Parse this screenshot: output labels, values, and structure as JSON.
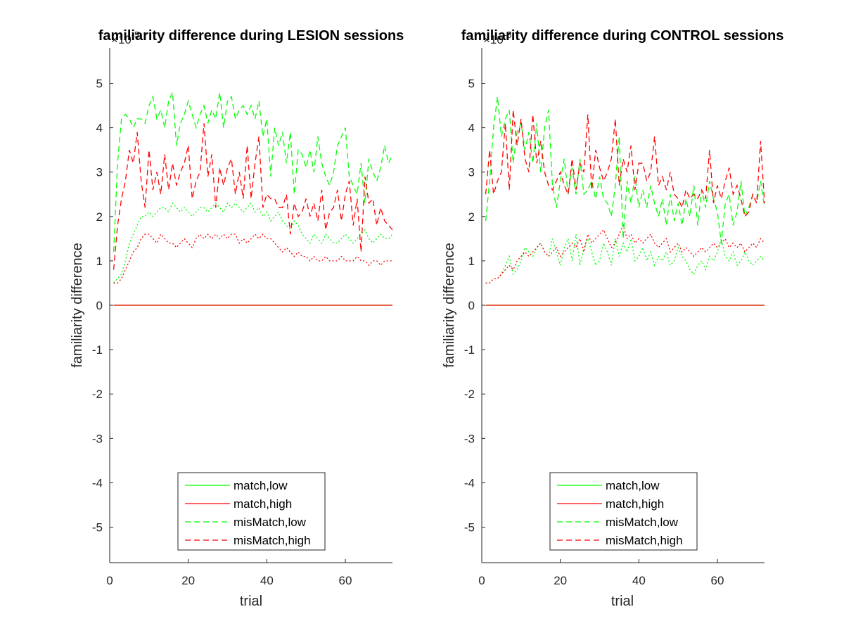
{
  "chart_data": [
    {
      "type": "line",
      "title": "familiarity difference during LESION sessions",
      "xlabel": "trial",
      "ylabel": "familiarity difference",
      "y_exponent_label": "×10",
      "y_exponent_power": "-5",
      "xlim": [
        0,
        72
      ],
      "ylim": [
        -5.8,
        5.8
      ],
      "xticks": [
        "0",
        "20",
        "40",
        "60"
      ],
      "yticks": [
        "-5",
        "-4",
        "-3",
        "-2",
        "-1",
        "0",
        "1",
        "2",
        "3",
        "4",
        "5"
      ],
      "grid": false,
      "legend_position": "bottom-center",
      "x_start": 1,
      "series": [
        {
          "name": "match,low",
          "color": "#00ff00",
          "style": "solid",
          "values": [
            0,
            0,
            0,
            0,
            0,
            0,
            0,
            0,
            0,
            0,
            0,
            0,
            0,
            0,
            0,
            0,
            0,
            0,
            0,
            0,
            0,
            0,
            0,
            0,
            0,
            0,
            0,
            0,
            0,
            0,
            0,
            0,
            0,
            0,
            0,
            0,
            0,
            0,
            0,
            0,
            0,
            0,
            0,
            0,
            0,
            0,
            0,
            0,
            0,
            0,
            0,
            0,
            0,
            0,
            0,
            0,
            0,
            0,
            0,
            0,
            0,
            0,
            0,
            0,
            0,
            0,
            0,
            0,
            0,
            0,
            0,
            0
          ]
        },
        {
          "name": "match,high",
          "color": "#ff0000",
          "style": "solid",
          "values": [
            0,
            0,
            0,
            0,
            0,
            0,
            0,
            0,
            0,
            0,
            0,
            0,
            0,
            0,
            0,
            0,
            0,
            0,
            0,
            0,
            0,
            0,
            0,
            0,
            0,
            0,
            0,
            0,
            0,
            0,
            0,
            0,
            0,
            0,
            0,
            0,
            0,
            0,
            0,
            0,
            0,
            0,
            0,
            0,
            0,
            0,
            0,
            0,
            0,
            0,
            0,
            0,
            0,
            0,
            0,
            0,
            0,
            0,
            0,
            0,
            0,
            0,
            0,
            0,
            0,
            0,
            0,
            0,
            0,
            0,
            0,
            0
          ]
        },
        {
          "name": "misMatch,low",
          "color": "#00ff00",
          "style": "dashed",
          "values": [
            1.2,
            3.2,
            4.2,
            4.3,
            4.2,
            4.0,
            4.2,
            4.2,
            4.1,
            4.5,
            4.7,
            4.2,
            4.4,
            4.0,
            4.6,
            4.8,
            3.6,
            4.1,
            4.3,
            4.6,
            4.3,
            4.0,
            4.3,
            4.5,
            4.1,
            4.4,
            4.2,
            4.8,
            4.0,
            4.6,
            4.7,
            4.2,
            4.4,
            4.5,
            4.3,
            4.5,
            4.2,
            4.6,
            3.8,
            4.2,
            2.9,
            4.0,
            3.6,
            3.9,
            3.2,
            3.9,
            2.5,
            3.5,
            3.4,
            3.1,
            3.5,
            3.0,
            3.8,
            3.2,
            2.9,
            2.7,
            3.0,
            3.6,
            3.8,
            4.0,
            2.9,
            2.7,
            2.5,
            3.2,
            2.3,
            3.3,
            3.0,
            2.8,
            3.1,
            3.6,
            3.2,
            3.4
          ]
        },
        {
          "name": "misMatch,high",
          "color": "#ff0000",
          "style": "dashed",
          "values": [
            0.8,
            1.8,
            2.4,
            2.8,
            3.5,
            3.2,
            3.9,
            2.8,
            2.2,
            3.5,
            2.6,
            3.0,
            2.5,
            3.4,
            2.6,
            3.2,
            2.7,
            3.0,
            3.2,
            3.6,
            2.4,
            2.8,
            3.0,
            4.1,
            2.9,
            3.4,
            2.2,
            3.1,
            2.7,
            3.1,
            3.3,
            2.5,
            3.0,
            2.4,
            3.6,
            2.4,
            3.2,
            3.8,
            2.2,
            2.5,
            2.4,
            2.4,
            2.2,
            2.2,
            2.5,
            1.6,
            2.3,
            2.0,
            2.1,
            2.4,
            2.0,
            2.3,
            1.9,
            2.6,
            1.7,
            2.1,
            2.2,
            2.6,
            1.9,
            2.5,
            2.8,
            1.8,
            2.4,
            1.2,
            2.9,
            2.3,
            2.4,
            1.8,
            2.2,
            1.9,
            1.8,
            1.7
          ]
        },
        {
          "name": "misMatch,low dotted",
          "color": "#00ff00",
          "style": "dotted",
          "values": [
            0.5,
            0.6,
            0.7,
            1.0,
            1.4,
            1.6,
            1.8,
            2.0,
            2.0,
            2.1,
            2.0,
            2.1,
            2.2,
            2.2,
            2.1,
            2.3,
            2.2,
            2.1,
            2.2,
            2.1,
            2.0,
            2.1,
            2.2,
            2.2,
            2.1,
            2.2,
            2.3,
            2.2,
            2.1,
            2.3,
            2.2,
            2.3,
            2.2,
            2.1,
            2.2,
            2.3,
            2.1,
            2.2,
            2.0,
            2.1,
            1.9,
            2.0,
            2.1,
            1.9,
            1.8,
            1.7,
            1.9,
            1.8,
            1.6,
            1.5,
            1.4,
            1.6,
            1.5,
            1.4,
            1.6,
            1.5,
            1.4,
            1.4,
            1.5,
            1.6,
            1.5,
            1.4,
            1.5,
            1.6,
            1.7,
            1.5,
            1.4,
            1.5,
            1.6,
            1.5,
            1.5,
            1.6
          ]
        },
        {
          "name": "misMatch,high dotted",
          "color": "#ff0000",
          "style": "dotted",
          "values": [
            0.5,
            0.5,
            0.6,
            0.8,
            1.0,
            1.2,
            1.3,
            1.5,
            1.6,
            1.6,
            1.5,
            1.4,
            1.6,
            1.5,
            1.4,
            1.4,
            1.3,
            1.4,
            1.5,
            1.4,
            1.3,
            1.5,
            1.6,
            1.5,
            1.6,
            1.5,
            1.6,
            1.5,
            1.6,
            1.5,
            1.6,
            1.6,
            1.4,
            1.5,
            1.4,
            1.5,
            1.6,
            1.5,
            1.6,
            1.5,
            1.5,
            1.4,
            1.3,
            1.2,
            1.3,
            1.2,
            1.1,
            1.2,
            1.1,
            1.1,
            1.0,
            1.1,
            1.0,
            1.0,
            1.1,
            1.0,
            1.0,
            1.0,
            1.1,
            1.0,
            1.0,
            1.0,
            1.1,
            1.0,
            1.0,
            0.9,
            1.0,
            1.0,
            0.9,
            1.0,
            1.0,
            1.0
          ]
        }
      ],
      "legend": [
        "match,low",
        "match,high",
        "misMatch,low",
        "misMatch,high"
      ]
    },
    {
      "type": "line",
      "title": "familiarity difference during CONTROL sessions",
      "xlabel": "trial",
      "ylabel": "familiarity difference",
      "y_exponent_label": "×10",
      "y_exponent_power": "-5",
      "xlim": [
        0,
        72
      ],
      "ylim": [
        -5.8,
        5.8
      ],
      "xticks": [
        "0",
        "20",
        "40",
        "60"
      ],
      "yticks": [
        "-5",
        "-4",
        "-3",
        "-2",
        "-1",
        "0",
        "1",
        "2",
        "3",
        "4",
        "5"
      ],
      "grid": false,
      "legend_position": "bottom-center",
      "x_start": 1,
      "series": [
        {
          "name": "match,low",
          "color": "#00ff00",
          "style": "solid",
          "values": [
            0,
            0,
            0,
            0,
            0,
            0,
            0,
            0,
            0,
            0,
            0,
            0,
            0,
            0,
            0,
            0,
            0,
            0,
            0,
            0,
            0,
            0,
            0,
            0,
            0,
            0,
            0,
            0,
            0,
            0,
            0,
            0,
            0,
            0,
            0,
            0,
            0,
            0,
            0,
            0,
            0,
            0,
            0,
            0,
            0,
            0,
            0,
            0,
            0,
            0,
            0,
            0,
            0,
            0,
            0,
            0,
            0,
            0,
            0,
            0,
            0,
            0,
            0,
            0,
            0,
            0,
            0,
            0,
            0,
            0,
            0,
            0
          ]
        },
        {
          "name": "match,high",
          "color": "#ff0000",
          "style": "solid",
          "values": [
            0,
            0,
            0,
            0,
            0,
            0,
            0,
            0,
            0,
            0,
            0,
            0,
            0,
            0,
            0,
            0,
            0,
            0,
            0,
            0,
            0,
            0,
            0,
            0,
            0,
            0,
            0,
            0,
            0,
            0,
            0,
            0,
            0,
            0,
            0,
            0,
            0,
            0,
            0,
            0,
            0,
            0,
            0,
            0,
            0,
            0,
            0,
            0,
            0,
            0,
            0,
            0,
            0,
            0,
            0,
            0,
            0,
            0,
            0,
            0,
            0,
            0,
            0,
            0,
            0,
            0,
            0,
            0,
            0,
            0,
            0,
            0
          ]
        },
        {
          "name": "misMatch,low",
          "color": "#00ff00",
          "style": "dashed",
          "values": [
            1.9,
            2.8,
            4.0,
            4.7,
            3.8,
            4.2,
            4.4,
            3.2,
            3.9,
            4.1,
            3.5,
            3.9,
            3.2,
            4.1,
            3.0,
            4.0,
            4.4,
            2.7,
            2.2,
            2.8,
            3.3,
            2.5,
            3.1,
            2.5,
            3.3,
            2.5,
            2.6,
            2.8,
            2.4,
            2.9,
            2.4,
            2.3,
            2.0,
            2.7,
            3.8,
            1.5,
            2.8,
            2.3,
            2.9,
            2.2,
            2.6,
            2.2,
            2.7,
            2.3,
            2.0,
            2.4,
            1.8,
            2.5,
            1.9,
            2.3,
            1.8,
            2.4,
            2.0,
            2.7,
            1.8,
            2.6,
            2.2,
            2.8,
            2.4,
            2.1,
            1.4,
            2.3,
            2.5,
            1.8,
            2.1,
            2.8,
            2.0,
            2.2,
            2.5,
            2.3,
            2.8,
            2.2
          ]
        },
        {
          "name": "misMatch,high",
          "color": "#ff0000",
          "style": "dashed",
          "values": [
            2.5,
            3.5,
            2.5,
            2.8,
            3.0,
            4.1,
            2.6,
            4.4,
            3.6,
            4.2,
            3.3,
            3.0,
            4.3,
            3.2,
            3.7,
            3.0,
            2.7,
            2.6,
            2.8,
            3.0,
            2.7,
            2.5,
            3.3,
            2.6,
            3.2,
            3.0,
            4.3,
            2.6,
            3.5,
            3.1,
            2.8,
            3.0,
            3.3,
            4.2,
            2.7,
            3.3,
            3.0,
            3.6,
            2.6,
            3.2,
            3.2,
            2.8,
            3.0,
            3.8,
            2.7,
            2.9,
            2.6,
            3.0,
            2.5,
            2.4,
            2.2,
            2.6,
            2.4,
            2.5,
            2.4,
            2.6,
            2.4,
            3.5,
            2.3,
            2.7,
            2.4,
            2.8,
            3.1,
            2.5,
            2.7,
            2.4,
            2.0,
            2.1,
            2.5,
            2.3,
            3.7,
            2.3
          ]
        },
        {
          "name": "misMatch,low dotted",
          "color": "#00ff00",
          "style": "dotted",
          "values": [
            0.5,
            0.5,
            0.6,
            0.6,
            0.7,
            0.9,
            1.1,
            0.7,
            0.8,
            1.0,
            1.3,
            1.2,
            1.1,
            1.3,
            1.4,
            1.2,
            1.1,
            1.5,
            1.2,
            0.9,
            1.3,
            1.5,
            1.0,
            1.6,
            0.9,
            1.3,
            1.5,
            1.2,
            0.9,
            1.0,
            1.4,
            1.2,
            0.9,
            1.5,
            1.1,
            1.4,
            1.2,
            1.5,
            1.0,
            1.1,
            1.3,
            1.0,
            1.2,
            0.9,
            1.1,
            1.0,
            1.2,
            0.9,
            1.0,
            1.3,
            1.1,
            1.0,
            0.8,
            0.7,
            0.9,
            1.0,
            0.8,
            1.1,
            1.0,
            1.2,
            1.5,
            1.1,
            1.0,
            1.2,
            0.9,
            1.0,
            1.2,
            1.0,
            0.9,
            1.0,
            1.1,
            1.0
          ]
        },
        {
          "name": "misMatch,high dotted",
          "color": "#ff0000",
          "style": "dotted",
          "values": [
            0.5,
            0.5,
            0.6,
            0.6,
            0.7,
            0.8,
            0.9,
            0.8,
            1.0,
            1.1,
            1.2,
            1.1,
            1.2,
            1.3,
            1.4,
            1.2,
            1.1,
            1.2,
            1.3,
            1.1,
            1.2,
            1.3,
            1.4,
            1.3,
            1.5,
            1.2,
            1.6,
            1.4,
            1.5,
            1.6,
            1.7,
            1.5,
            1.3,
            1.4,
            1.6,
            1.8,
            1.5,
            1.6,
            1.4,
            1.5,
            1.4,
            1.5,
            1.6,
            1.4,
            1.3,
            1.4,
            1.5,
            1.2,
            1.3,
            1.4,
            1.2,
            1.3,
            1.2,
            1.1,
            1.2,
            1.3,
            1.2,
            1.3,
            1.4,
            1.3,
            1.4,
            1.5,
            1.3,
            1.4,
            1.3,
            1.4,
            1.2,
            1.3,
            1.4,
            1.3,
            1.5,
            1.4
          ]
        }
      ],
      "legend": [
        "match,low",
        "match,high",
        "misMatch,low",
        "misMatch,high"
      ]
    }
  ]
}
